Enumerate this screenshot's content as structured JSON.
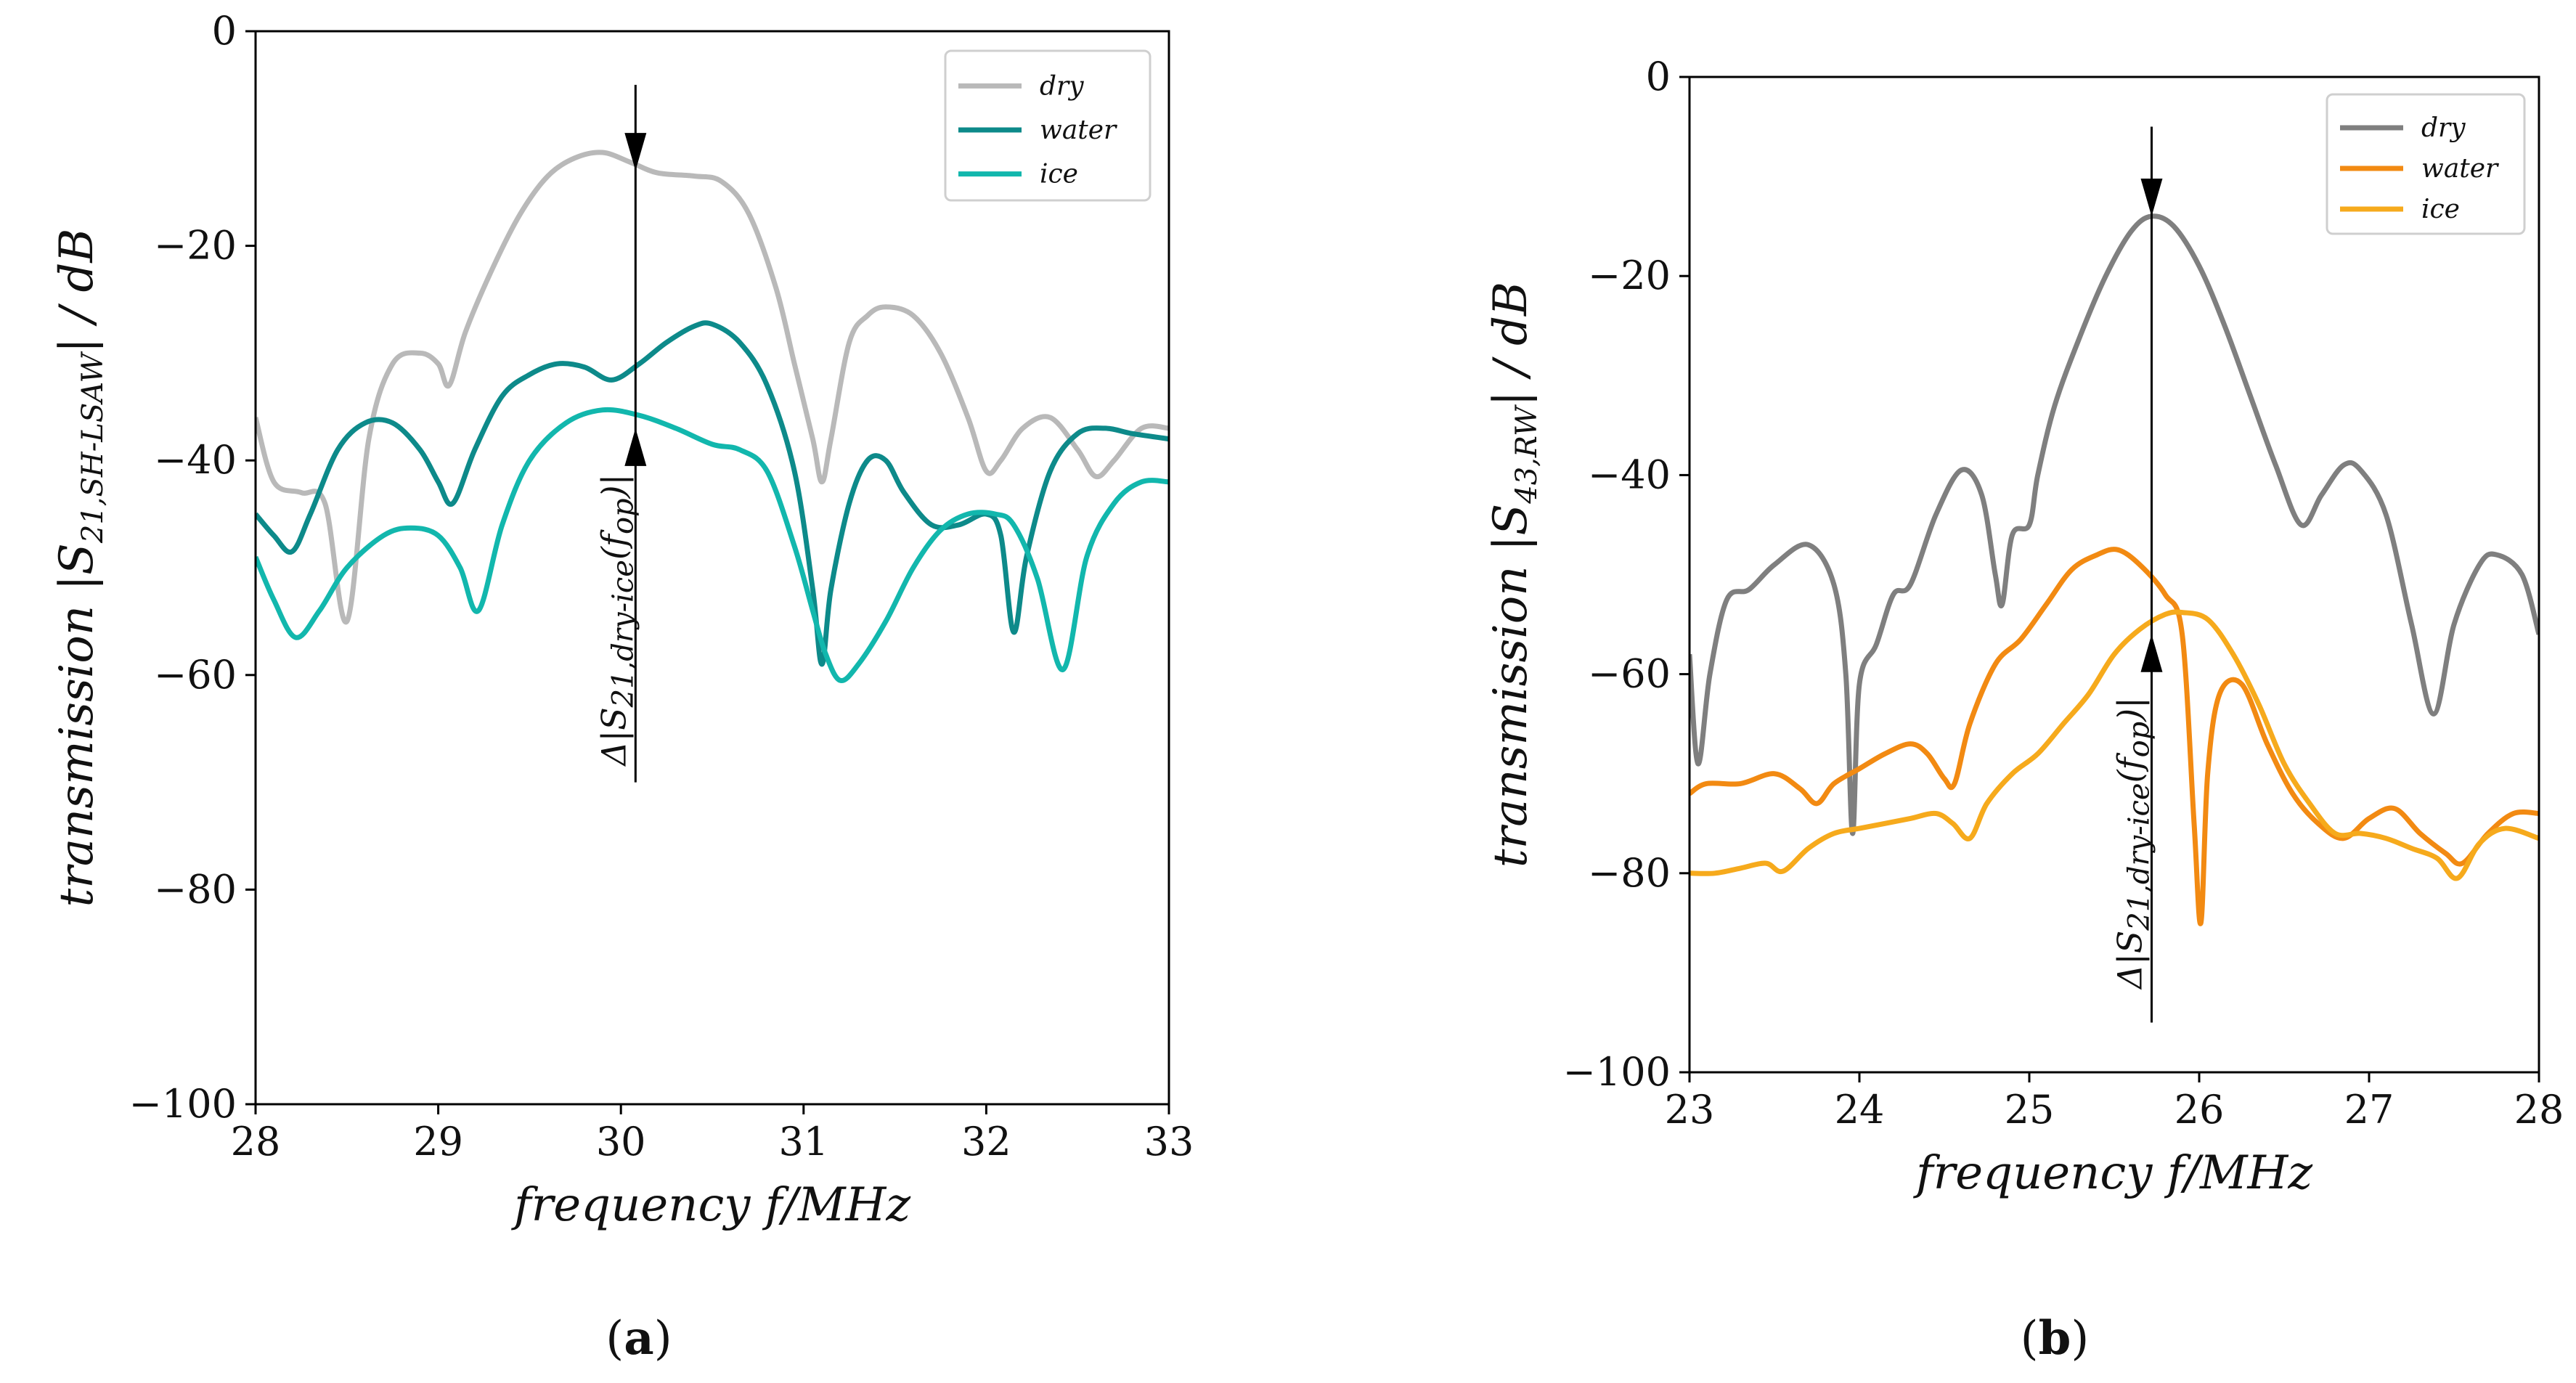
{
  "chart_data": [
    {
      "type": "line",
      "panel_label": {
        "open": "(",
        "letter": "a",
        "close": ")"
      },
      "xlabel": "frequency  f/MHz",
      "ylabel": {
        "prefix": "transmission  |S",
        "sub": "21,SH-LSAW",
        "suffix": "| / dB"
      },
      "xlim": [
        28,
        33
      ],
      "ylim": [
        -100,
        0
      ],
      "xticks": [
        "28",
        "29",
        "30",
        "31",
        "32",
        "33"
      ],
      "yticks": [
        "0",
        "−20",
        "−40",
        "−60",
        "−80",
        "−100"
      ],
      "legend_position": "top-right",
      "annotation": {
        "x": 30.08,
        "y_top": -5,
        "y_bottom": -70,
        "arrow_down_to": -13,
        "arrow_up_to": -37,
        "text_prefix": "Δ|S",
        "text_sub": "21,dry-ice",
        "text_mid": "(f",
        "text_sub2": "op",
        "text_suffix": ")|"
      },
      "series": [
        {
          "name": "dry",
          "color": "#b9b9b9",
          "points": [
            [
              28.0,
              -36
            ],
            [
              28.1,
              -42
            ],
            [
              28.25,
              -43
            ],
            [
              28.38,
              -44
            ],
            [
              28.5,
              -55
            ],
            [
              28.62,
              -38
            ],
            [
              28.75,
              -31
            ],
            [
              28.9,
              -30
            ],
            [
              29.0,
              -31
            ],
            [
              29.06,
              -33
            ],
            [
              29.15,
              -28
            ],
            [
              29.3,
              -22
            ],
            [
              29.45,
              -17
            ],
            [
              29.6,
              -13.5
            ],
            [
              29.75,
              -11.8
            ],
            [
              29.9,
              -11.3
            ],
            [
              30.05,
              -12.2
            ],
            [
              30.2,
              -13.2
            ],
            [
              30.4,
              -13.5
            ],
            [
              30.55,
              -14
            ],
            [
              30.7,
              -17
            ],
            [
              30.85,
              -24
            ],
            [
              30.95,
              -31
            ],
            [
              31.05,
              -38
            ],
            [
              31.1,
              -42
            ],
            [
              31.15,
              -38
            ],
            [
              31.25,
              -29
            ],
            [
              31.35,
              -26.5
            ],
            [
              31.45,
              -25.7
            ],
            [
              31.6,
              -26.5
            ],
            [
              31.75,
              -30
            ],
            [
              31.9,
              -36
            ],
            [
              32.0,
              -41
            ],
            [
              32.08,
              -40
            ],
            [
              32.2,
              -37
            ],
            [
              32.35,
              -36
            ],
            [
              32.5,
              -39
            ],
            [
              32.6,
              -41.5
            ],
            [
              32.7,
              -40
            ],
            [
              32.85,
              -37
            ],
            [
              33.0,
              -37
            ]
          ]
        },
        {
          "name": "water",
          "color": "#0d8a8a",
          "points": [
            [
              28.0,
              -45
            ],
            [
              28.1,
              -47
            ],
            [
              28.2,
              -48.5
            ],
            [
              28.3,
              -45
            ],
            [
              28.45,
              -39
            ],
            [
              28.6,
              -36.5
            ],
            [
              28.75,
              -36.5
            ],
            [
              28.9,
              -39
            ],
            [
              29.0,
              -42
            ],
            [
              29.08,
              -44
            ],
            [
              29.2,
              -39
            ],
            [
              29.35,
              -34
            ],
            [
              29.5,
              -32
            ],
            [
              29.65,
              -31
            ],
            [
              29.8,
              -31.3
            ],
            [
              29.95,
              -32.5
            ],
            [
              30.1,
              -31
            ],
            [
              30.25,
              -29
            ],
            [
              30.4,
              -27.5
            ],
            [
              30.5,
              -27.3
            ],
            [
              30.65,
              -29
            ],
            [
              30.8,
              -33
            ],
            [
              30.95,
              -41
            ],
            [
              31.05,
              -52
            ],
            [
              31.1,
              -59
            ],
            [
              31.15,
              -52
            ],
            [
              31.25,
              -44
            ],
            [
              31.35,
              -40
            ],
            [
              31.45,
              -40
            ],
            [
              31.55,
              -43
            ],
            [
              31.7,
              -46
            ],
            [
              31.85,
              -46
            ],
            [
              32.0,
              -45
            ],
            [
              32.08,
              -47
            ],
            [
              32.15,
              -56
            ],
            [
              32.22,
              -49
            ],
            [
              32.35,
              -41
            ],
            [
              32.5,
              -37.5
            ],
            [
              32.65,
              -37
            ],
            [
              32.8,
              -37.5
            ],
            [
              33.0,
              -38
            ]
          ]
        },
        {
          "name": "ice",
          "color": "#12b7ad",
          "points": [
            [
              28.0,
              -49
            ],
            [
              28.1,
              -53
            ],
            [
              28.22,
              -56.5
            ],
            [
              28.35,
              -54
            ],
            [
              28.5,
              -50
            ],
            [
              28.7,
              -47
            ],
            [
              28.85,
              -46.3
            ],
            [
              29.0,
              -47
            ],
            [
              29.12,
              -50
            ],
            [
              29.22,
              -54
            ],
            [
              29.35,
              -46
            ],
            [
              29.5,
              -40
            ],
            [
              29.7,
              -36.5
            ],
            [
              29.9,
              -35.3
            ],
            [
              30.1,
              -35.8
            ],
            [
              30.3,
              -37
            ],
            [
              30.5,
              -38.5
            ],
            [
              30.65,
              -39
            ],
            [
              30.8,
              -41
            ],
            [
              30.95,
              -48
            ],
            [
              31.05,
              -54
            ],
            [
              31.12,
              -58
            ],
            [
              31.2,
              -60.5
            ],
            [
              31.3,
              -59
            ],
            [
              31.45,
              -55
            ],
            [
              31.6,
              -50
            ],
            [
              31.75,
              -46.5
            ],
            [
              31.9,
              -45
            ],
            [
              32.05,
              -45
            ],
            [
              32.15,
              -46
            ],
            [
              32.28,
              -51
            ],
            [
              32.42,
              -59.5
            ],
            [
              32.55,
              -49
            ],
            [
              32.7,
              -44
            ],
            [
              32.85,
              -42
            ],
            [
              33.0,
              -42
            ]
          ]
        }
      ]
    },
    {
      "type": "line",
      "panel_label": {
        "open": "(",
        "letter": "b",
        "close": ")"
      },
      "xlabel": "frequency  f/MHz",
      "ylabel": {
        "prefix": "transmission  |S",
        "sub": "43,RW",
        "suffix": "| / dB"
      },
      "xlim": [
        23,
        28
      ],
      "ylim": [
        -100,
        0
      ],
      "xticks": [
        "23",
        "24",
        "25",
        "26",
        "27",
        "28"
      ],
      "yticks": [
        "0",
        "−20",
        "−40",
        "−60",
        "−80",
        "−100"
      ],
      "legend_position": "top-right",
      "annotation": {
        "x": 25.72,
        "y_top": -5,
        "y_bottom": -95,
        "arrow_down_to": -14,
        "arrow_up_to": -56,
        "text_prefix": "Δ|S",
        "text_sub": "21,dry-ice",
        "text_mid": "(f",
        "text_sub2": "op",
        "text_suffix": ")|"
      },
      "series": [
        {
          "name": "dry",
          "color": "#7f7f7f",
          "points": [
            [
              23.0,
              -58
            ],
            [
              23.05,
              -69
            ],
            [
              23.12,
              -60
            ],
            [
              23.22,
              -52.5
            ],
            [
              23.35,
              -51.5
            ],
            [
              23.5,
              -49
            ],
            [
              23.7,
              -47
            ],
            [
              23.85,
              -51
            ],
            [
              23.92,
              -60
            ],
            [
              23.96,
              -76
            ],
            [
              24.0,
              -61
            ],
            [
              24.1,
              -57
            ],
            [
              24.2,
              -52
            ],
            [
              24.3,
              -51
            ],
            [
              24.45,
              -44
            ],
            [
              24.6,
              -39.5
            ],
            [
              24.72,
              -42
            ],
            [
              24.8,
              -50
            ],
            [
              24.84,
              -53
            ],
            [
              24.9,
              -46
            ],
            [
              25.0,
              -45
            ],
            [
              25.05,
              -40
            ],
            [
              25.15,
              -33
            ],
            [
              25.3,
              -26
            ],
            [
              25.45,
              -20
            ],
            [
              25.6,
              -15.5
            ],
            [
              25.72,
              -14
            ],
            [
              25.85,
              -15
            ],
            [
              26.0,
              -19
            ],
            [
              26.15,
              -25
            ],
            [
              26.3,
              -32
            ],
            [
              26.45,
              -39
            ],
            [
              26.6,
              -45
            ],
            [
              26.72,
              -42
            ],
            [
              26.85,
              -39
            ],
            [
              26.95,
              -39.5
            ],
            [
              27.1,
              -44
            ],
            [
              27.25,
              -55
            ],
            [
              27.38,
              -64
            ],
            [
              27.5,
              -55
            ],
            [
              27.65,
              -49
            ],
            [
              27.75,
              -48
            ],
            [
              27.9,
              -50
            ],
            [
              28.0,
              -56
            ]
          ]
        },
        {
          "name": "water",
          "color": "#f28a12",
          "points": [
            [
              23.0,
              -72
            ],
            [
              23.1,
              -71
            ],
            [
              23.3,
              -71
            ],
            [
              23.5,
              -70
            ],
            [
              23.65,
              -71.5
            ],
            [
              23.75,
              -73
            ],
            [
              23.85,
              -71
            ],
            [
              24.0,
              -69.5
            ],
            [
              24.15,
              -68
            ],
            [
              24.3,
              -67
            ],
            [
              24.4,
              -68
            ],
            [
              24.5,
              -70.5
            ],
            [
              24.56,
              -71
            ],
            [
              24.65,
              -65
            ],
            [
              24.8,
              -59
            ],
            [
              24.95,
              -56.5
            ],
            [
              25.1,
              -53
            ],
            [
              25.25,
              -49.5
            ],
            [
              25.4,
              -48
            ],
            [
              25.52,
              -47.5
            ],
            [
              25.65,
              -49
            ],
            [
              25.8,
              -52
            ],
            [
              25.9,
              -56
            ],
            [
              25.97,
              -75
            ],
            [
              26.01,
              -85
            ],
            [
              26.05,
              -70
            ],
            [
              26.12,
              -62
            ],
            [
              26.25,
              -61
            ],
            [
              26.4,
              -67
            ],
            [
              26.55,
              -72
            ],
            [
              26.7,
              -75
            ],
            [
              26.85,
              -76.5
            ],
            [
              27.0,
              -74.5
            ],
            [
              27.15,
              -73.5
            ],
            [
              27.3,
              -76
            ],
            [
              27.45,
              -78
            ],
            [
              27.55,
              -79
            ],
            [
              27.7,
              -76
            ],
            [
              27.85,
              -74
            ],
            [
              28.0,
              -74
            ]
          ]
        },
        {
          "name": "ice",
          "color": "#f6aa1c",
          "points": [
            [
              23.0,
              -80
            ],
            [
              23.15,
              -80
            ],
            [
              23.3,
              -79.5
            ],
            [
              23.45,
              -79
            ],
            [
              23.55,
              -79.8
            ],
            [
              23.7,
              -77.5
            ],
            [
              23.85,
              -76
            ],
            [
              24.0,
              -75.5
            ],
            [
              24.15,
              -75
            ],
            [
              24.3,
              -74.5
            ],
            [
              24.45,
              -74
            ],
            [
              24.55,
              -75
            ],
            [
              24.65,
              -76.5
            ],
            [
              24.75,
              -73
            ],
            [
              24.9,
              -70
            ],
            [
              25.05,
              -68
            ],
            [
              25.2,
              -65
            ],
            [
              25.35,
              -62
            ],
            [
              25.5,
              -58
            ],
            [
              25.65,
              -55.5
            ],
            [
              25.8,
              -54
            ],
            [
              25.9,
              -53.8
            ],
            [
              26.05,
              -54.5
            ],
            [
              26.2,
              -58
            ],
            [
              26.35,
              -63
            ],
            [
              26.5,
              -69
            ],
            [
              26.65,
              -73
            ],
            [
              26.8,
              -76
            ],
            [
              26.95,
              -76
            ],
            [
              27.1,
              -76.5
            ],
            [
              27.25,
              -77.5
            ],
            [
              27.4,
              -78.5
            ],
            [
              27.52,
              -80.5
            ],
            [
              27.65,
              -77
            ],
            [
              27.8,
              -75.5
            ],
            [
              28.0,
              -76.5
            ]
          ]
        }
      ]
    }
  ]
}
